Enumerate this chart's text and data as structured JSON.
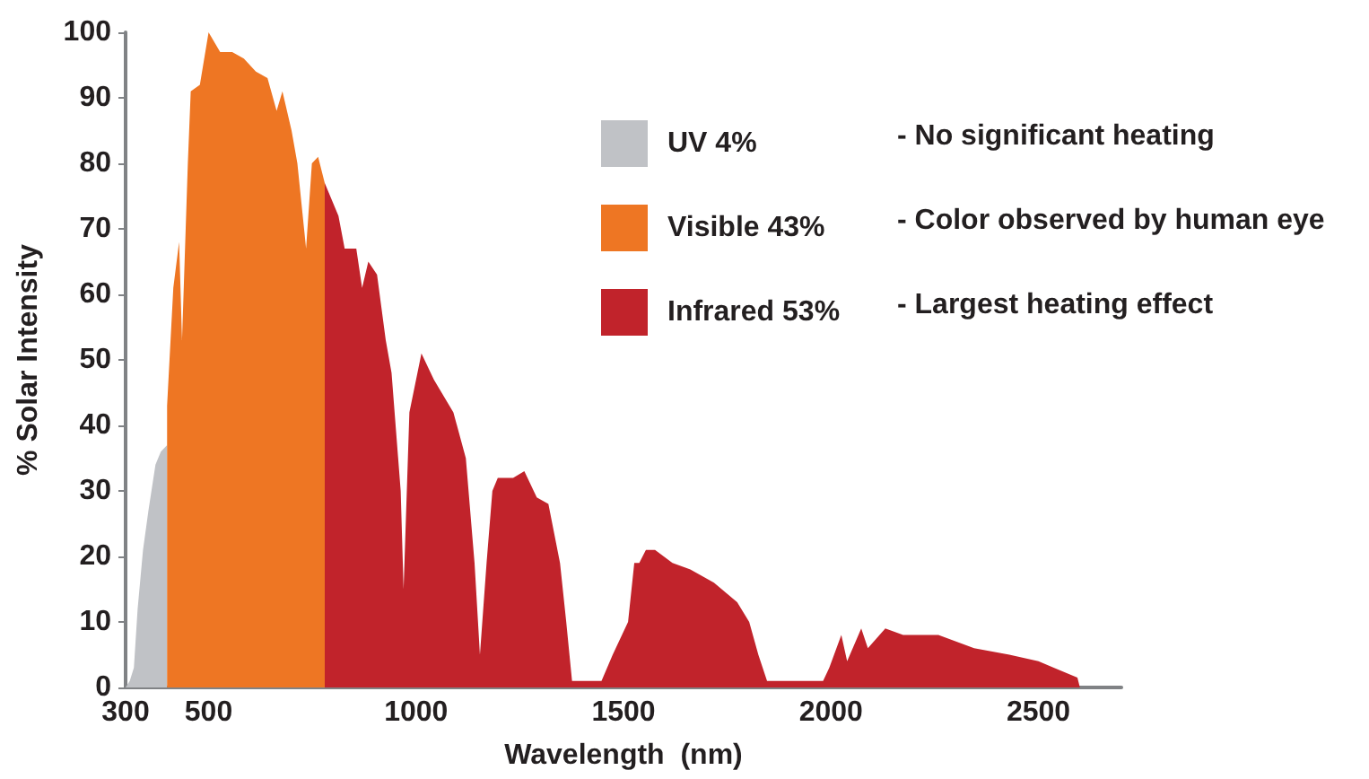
{
  "chart_data": {
    "type": "area",
    "xlabel": "Wavelength  (nm)",
    "ylabel": "% Solar Intensity",
    "xlim": [
      300,
      2700
    ],
    "xticks": [
      300,
      500,
      1000,
      1500,
      2000,
      2500
    ],
    "ylim": [
      0,
      100
    ],
    "yticks": [
      0,
      10,
      20,
      30,
      40,
      50,
      60,
      70,
      80,
      90,
      100
    ],
    "grid": false,
    "legend": "top right",
    "annotations": [
      "- No significant heating",
      "- Color observed by human eye",
      "- Largest heating effect"
    ],
    "series": [
      {
        "name": "UV 4%",
        "color": "#c0c2c6",
        "x": [
          300,
          310,
          320,
          329,
          342,
          355,
          372,
          385,
          400
        ],
        "values": [
          0,
          1,
          3,
          12,
          21,
          27,
          34,
          36,
          37
        ]
      },
      {
        "name": "Visible 43%",
        "color": "#ee7623",
        "x": [
          400,
          415,
          429,
          436,
          450,
          457,
          479,
          500,
          528,
          557,
          585,
          614,
          642,
          664,
          678,
          700,
          714,
          735,
          749,
          764,
          780
        ],
        "values": [
          43,
          61,
          68,
          53,
          80,
          91,
          92,
          100,
          97,
          97,
          96,
          94,
          93,
          88,
          91,
          85,
          80,
          67,
          80,
          81,
          77
        ]
      },
      {
        "name": "Infrared 53%",
        "color": "#c1232b",
        "x": [
          780,
          813,
          828,
          856,
          870,
          885,
          906,
          927,
          941,
          963,
          970,
          984,
          1013,
          1043,
          1090,
          1120,
          1141,
          1154,
          1170,
          1184,
          1197,
          1234,
          1261,
          1291,
          1319,
          1347,
          1362,
          1376,
          1447,
          1474,
          1511,
          1526,
          1538,
          1554,
          1576,
          1618,
          1661,
          1718,
          1774,
          1803,
          1825,
          1846,
          1981,
          1996,
          2025,
          2039,
          2073,
          2089,
          2131,
          2174,
          2259,
          2345,
          2430,
          2500,
          2537,
          2594,
          2600
        ],
        "values": [
          77,
          72,
          67,
          67,
          61,
          65,
          63,
          53,
          48,
          30,
          15,
          42,
          51,
          47,
          42,
          35,
          19,
          5,
          19,
          30,
          32,
          32,
          33,
          29,
          28,
          19,
          10,
          1,
          1,
          5,
          10,
          19,
          19,
          21,
          21,
          19,
          18,
          16,
          13,
          10,
          5,
          1,
          1,
          3,
          8,
          4,
          9,
          6,
          9,
          8,
          8,
          6,
          5,
          4,
          3,
          1.5,
          0
        ]
      }
    ]
  }
}
